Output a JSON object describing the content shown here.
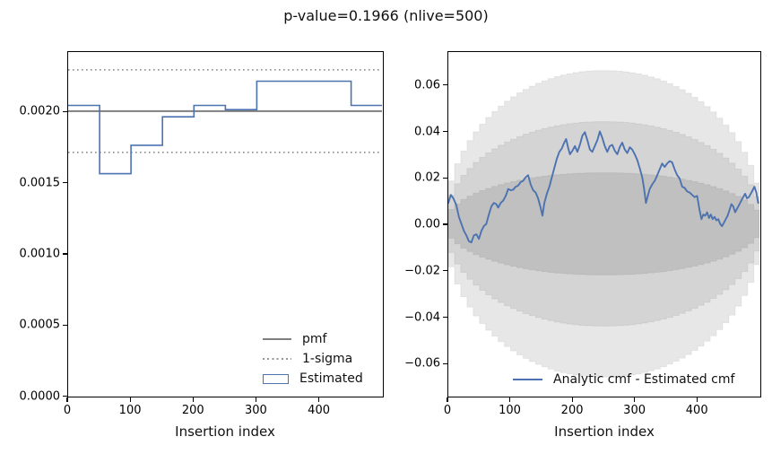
{
  "title": "p-value=0.1966 (nlive=500)",
  "colors": {
    "line_blue": "#4c72b0",
    "pmf_gray": "#7f7f7f",
    "sigma_dotted_gray": "#8e8e8e",
    "band_inner": "#c0c0c0",
    "band_middle": "#d4d4d4",
    "band_outer": "#e7e7e7",
    "spine": "#000000"
  },
  "chart_data": [
    {
      "type": "bar",
      "subtype": "step-histogram-outline",
      "title": "",
      "xlabel": "Insertion index",
      "ylabel": "",
      "xlim": [
        0,
        499
      ],
      "ylim": [
        0,
        0.002415
      ],
      "xticks": [
        0,
        100,
        200,
        300,
        400
      ],
      "yticks": [
        0,
        0.0005,
        0.001,
        0.0015,
        0.002
      ],
      "ytick_labels": [
        "0.0000",
        "0.0005",
        "0.0010",
        "0.0015",
        "0.0020"
      ],
      "grid": false,
      "pmf_value": 0.002,
      "sigma_upper": 0.00229,
      "sigma_lower": 0.00171,
      "bin_edges": [
        0,
        50,
        100,
        150,
        200,
        250,
        300,
        350,
        400,
        450,
        500
      ],
      "estimated_values": [
        0.00204,
        0.00156,
        0.00176,
        0.00196,
        0.00204,
        0.00201,
        0.00221,
        0.00221,
        0.00221,
        0.00204
      ],
      "legend": {
        "position": "lower right",
        "items": [
          "pmf",
          "1-sigma",
          "Estimated"
        ]
      }
    },
    {
      "type": "line",
      "title": "",
      "xlabel": "Insertion index",
      "ylabel": "",
      "xlim": [
        0,
        499
      ],
      "ylim": [
        -0.074,
        0.074
      ],
      "xticks": [
        0,
        100,
        200,
        300,
        400
      ],
      "yticks": [
        0.06,
        0.04,
        0.02,
        0,
        -0.02,
        -0.04,
        -0.06
      ],
      "ytick_labels": [
        "0.06",
        "0.04",
        "0.02",
        "0.00",
        "−0.02",
        "−0.04",
        "−0.06"
      ],
      "grid": false,
      "bands": {
        "sigma_unit": 0.022,
        "levels": [
          1,
          2,
          3
        ],
        "step_width": 10,
        "shape": "stepped-ellipse"
      },
      "legend": {
        "position": "lower center",
        "items": [
          "Analytic cmf - Estimated cmf"
        ]
      },
      "series": [
        {
          "name": "Analytic cmf - Estimated cmf",
          "points": [
            [
              0,
              0.009
            ],
            [
              4,
              0.0125
            ],
            [
              8,
              0.011
            ],
            [
              13,
              0.008
            ],
            [
              17,
              0.003
            ],
            [
              21,
              0
            ],
            [
              25,
              -0.003
            ],
            [
              29,
              -0.005
            ],
            [
              33,
              -0.0075
            ],
            [
              37,
              -0.008
            ],
            [
              41,
              -0.005
            ],
            [
              45,
              -0.0045
            ],
            [
              49,
              -0.0065
            ],
            [
              53,
              -0.003
            ],
            [
              57,
              -0.001
            ],
            [
              61,
              0
            ],
            [
              65,
              0.004
            ],
            [
              69,
              0.0075
            ],
            [
              73,
              0.009
            ],
            [
              77,
              0.0085
            ],
            [
              80,
              0.007
            ],
            [
              84,
              0.009
            ],
            [
              88,
              0.01
            ],
            [
              92,
              0.012
            ],
            [
              96,
              0.015
            ],
            [
              100,
              0.0145
            ],
            [
              104,
              0.0147
            ],
            [
              108,
              0.016
            ],
            [
              112,
              0.0165
            ],
            [
              116,
              0.018
            ],
            [
              120,
              0.0185
            ],
            [
              124,
              0.02
            ],
            [
              128,
              0.021
            ],
            [
              132,
              0.017
            ],
            [
              136,
              0.0145
            ],
            [
              140,
              0.0135
            ],
            [
              144,
              0.011
            ],
            [
              148,
              0.007
            ],
            [
              151,
              0.0035
            ],
            [
              154,
              0.009
            ],
            [
              158,
              0.013
            ],
            [
              162,
              0.016
            ],
            [
              166,
              0.02
            ],
            [
              170,
              0.024
            ],
            [
              174,
              0.028
            ],
            [
              178,
              0.031
            ],
            [
              182,
              0.0325
            ],
            [
              186,
              0.035
            ],
            [
              189,
              0.0365
            ],
            [
              192,
              0.033
            ],
            [
              195,
              0.03
            ],
            [
              199,
              0.0315
            ],
            [
              203,
              0.0335
            ],
            [
              207,
              0.031
            ],
            [
              211,
              0.034
            ],
            [
              215,
              0.038
            ],
            [
              219,
              0.0395
            ],
            [
              223,
              0.036
            ],
            [
              227,
              0.032
            ],
            [
              231,
              0.031
            ],
            [
              235,
              0.0335
            ],
            [
              239,
              0.036
            ],
            [
              243,
              0.0398
            ],
            [
              247,
              0.037
            ],
            [
              251,
              0.0335
            ],
            [
              255,
              0.031
            ],
            [
              259,
              0.0335
            ],
            [
              263,
              0.034
            ],
            [
              267,
              0.0315
            ],
            [
              271,
              0.03
            ],
            [
              275,
              0.033
            ],
            [
              279,
              0.035
            ],
            [
              283,
              0.032
            ],
            [
              287,
              0.0305
            ],
            [
              291,
              0.033
            ],
            [
              295,
              0.032
            ],
            [
              299,
              0.03
            ],
            [
              303,
              0.0275
            ],
            [
              307,
              0.024
            ],
            [
              311,
              0.02
            ],
            [
              314,
              0.015
            ],
            [
              317,
              0.009
            ],
            [
              320,
              0.012
            ],
            [
              323,
              0.015
            ],
            [
              327,
              0.017
            ],
            [
              331,
              0.0185
            ],
            [
              335,
              0.021
            ],
            [
              339,
              0.0235
            ],
            [
              343,
              0.026
            ],
            [
              347,
              0.0245
            ],
            [
              351,
              0.026
            ],
            [
              355,
              0.027
            ],
            [
              359,
              0.0265
            ],
            [
              363,
              0.0235
            ],
            [
              367,
              0.021
            ],
            [
              371,
              0.0195
            ],
            [
              375,
              0.016
            ],
            [
              379,
              0.0155
            ],
            [
              383,
              0.014
            ],
            [
              387,
              0.0135
            ],
            [
              391,
              0.0125
            ],
            [
              395,
              0.0115
            ],
            [
              399,
              0.012
            ],
            [
              403,
              0.006
            ],
            [
              406,
              0.002
            ],
            [
              409,
              0.004
            ],
            [
              412,
              0.0035
            ],
            [
              415,
              0.005
            ],
            [
              418,
              0.0025
            ],
            [
              421,
              0.004
            ],
            [
              424,
              0.002
            ],
            [
              427,
              0.003
            ],
            [
              430,
              0.0015
            ],
            [
              433,
              0.002
            ],
            [
              436,
              0
            ],
            [
              439,
              -0.001
            ],
            [
              442,
              0.0005
            ],
            [
              445,
              0.002
            ],
            [
              448,
              0.0035
            ],
            [
              451,
              0.006
            ],
            [
              454,
              0.0085
            ],
            [
              457,
              0.0075
            ],
            [
              460,
              0.005
            ],
            [
              463,
              0.0065
            ],
            [
              466,
              0.008
            ],
            [
              470,
              0.01
            ],
            [
              473,
              0.0115
            ],
            [
              476,
              0.013
            ],
            [
              479,
              0.011
            ],
            [
              482,
              0.0115
            ],
            [
              485,
              0.013
            ],
            [
              488,
              0.0145
            ],
            [
              491,
              0.016
            ],
            [
              494,
              0.0135
            ],
            [
              497,
              0.009
            ]
          ]
        }
      ]
    }
  ]
}
